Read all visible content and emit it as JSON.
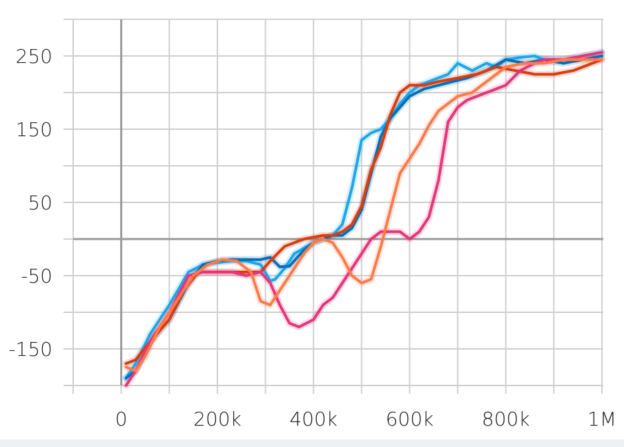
{
  "chart_data": {
    "type": "line",
    "title": "",
    "xlabel": "",
    "ylabel": "",
    "xlim": [
      -100000,
      1000000
    ],
    "ylim": [
      -200,
      300
    ],
    "xtick_values": [
      0,
      200000,
      400000,
      600000,
      800000,
      1000000
    ],
    "xtick_labels": [
      "0",
      "200k",
      "400k",
      "600k",
      "800k",
      "1M"
    ],
    "ytick_values": [
      250,
      150,
      50,
      -50,
      -150
    ],
    "ytick_labels": [
      "250",
      "150",
      "50",
      "-50",
      "-150"
    ],
    "grid": true,
    "series": [
      {
        "color": "#1ca7ea",
        "x": [
          10000,
          30000,
          60000,
          100000,
          140000,
          170000,
          200000,
          230000,
          260000,
          290000,
          310000,
          320000,
          340000,
          360000,
          400000,
          440000,
          460000,
          480000,
          500000,
          520000,
          540000,
          560000,
          580000,
          600000,
          620000,
          640000,
          660000,
          680000,
          700000,
          730000,
          760000,
          780000,
          800000,
          830000,
          860000,
          880000,
          920000,
          960000,
          1000000
        ],
        "y": [
          -190,
          -170,
          -130,
          -90,
          -45,
          -35,
          -32,
          -30,
          -30,
          -35,
          -57,
          -55,
          -40,
          -20,
          -5,
          5,
          20,
          70,
          135,
          145,
          150,
          165,
          185,
          200,
          210,
          215,
          220,
          225,
          240,
          230,
          240,
          235,
          245,
          248,
          250,
          245,
          245,
          250,
          255
        ]
      },
      {
        "color": "#0a6fb5",
        "x": [
          10000,
          30000,
          60000,
          100000,
          140000,
          170000,
          200000,
          230000,
          260000,
          290000,
          310000,
          330000,
          350000,
          380000,
          400000,
          420000,
          440000,
          460000,
          480000,
          500000,
          520000,
          540000,
          560000,
          580000,
          600000,
          630000,
          660000,
          690000,
          720000,
          760000,
          800000,
          840000,
          880000,
          920000,
          960000,
          1000000
        ],
        "y": [
          -190,
          -180,
          -140,
          -110,
          -60,
          -35,
          -30,
          -28,
          -28,
          -28,
          -25,
          -38,
          -37,
          -15,
          -5,
          0,
          5,
          5,
          15,
          40,
          90,
          140,
          165,
          180,
          195,
          205,
          210,
          215,
          220,
          230,
          245,
          240,
          245,
          240,
          245,
          250
        ]
      },
      {
        "color": "#d83d12",
        "x": [
          10000,
          30000,
          60000,
          100000,
          130000,
          160000,
          200000,
          230000,
          260000,
          290000,
          310000,
          340000,
          380000,
          420000,
          440000,
          460000,
          480000,
          500000,
          520000,
          540000,
          560000,
          580000,
          600000,
          630000,
          660000,
          700000,
          740000,
          780000,
          820000,
          860000,
          900000,
          940000,
          980000,
          1000000
        ],
        "y": [
          -170,
          -165,
          -140,
          -110,
          -70,
          -45,
          -45,
          -45,
          -45,
          -45,
          -30,
          -10,
          0,
          5,
          5,
          10,
          20,
          45,
          95,
          125,
          170,
          200,
          210,
          210,
          215,
          220,
          225,
          235,
          230,
          225,
          225,
          230,
          240,
          245
        ]
      },
      {
        "color": "#e7357a",
        "x": [
          10000,
          30000,
          60000,
          100000,
          140000,
          170000,
          200000,
          230000,
          260000,
          290000,
          310000,
          330000,
          350000,
          370000,
          400000,
          420000,
          440000,
          460000,
          480000,
          500000,
          520000,
          540000,
          560000,
          580000,
          600000,
          620000,
          640000,
          660000,
          680000,
          700000,
          720000,
          760000,
          800000,
          830000,
          860000,
          880000,
          920000,
          960000,
          1000000
        ],
        "y": [
          -200,
          -180,
          -140,
          -100,
          -50,
          -45,
          -45,
          -45,
          -50,
          -45,
          -60,
          -90,
          -115,
          -120,
          -110,
          -90,
          -80,
          -60,
          -40,
          -20,
          0,
          10,
          10,
          10,
          0,
          10,
          30,
          80,
          160,
          180,
          190,
          200,
          210,
          230,
          240,
          245,
          245,
          250,
          255
        ]
      },
      {
        "color": "#ff7a4a",
        "x": [
          10000,
          30000,
          50000,
          80000,
          120000,
          150000,
          180000,
          210000,
          240000,
          270000,
          290000,
          310000,
          330000,
          360000,
          380000,
          400000,
          420000,
          440000,
          460000,
          480000,
          500000,
          520000,
          540000,
          560000,
          580000,
          600000,
          620000,
          640000,
          660000,
          680000,
          700000,
          730000,
          760000,
          800000,
          840000,
          880000,
          920000,
          960000,
          1000000
        ],
        "y": [
          -175,
          -180,
          -160,
          -120,
          -80,
          -50,
          -35,
          -28,
          -30,
          -45,
          -85,
          -90,
          -70,
          -40,
          -20,
          -5,
          0,
          -5,
          -25,
          -50,
          -60,
          -55,
          -10,
          40,
          90,
          110,
          130,
          155,
          175,
          185,
          195,
          200,
          215,
          235,
          240,
          240,
          245,
          245,
          245
        ]
      }
    ]
  }
}
